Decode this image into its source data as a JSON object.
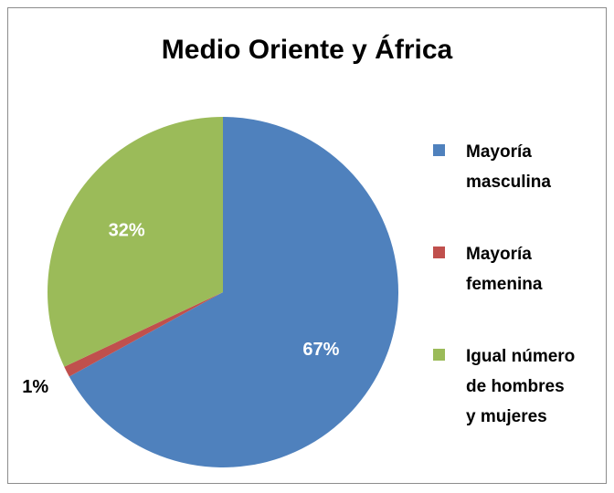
{
  "chart_data": {
    "type": "pie",
    "title": "Medio Oriente y África",
    "categories": [
      "Mayoría masculina",
      "Mayoría femenina",
      "Igual número de hombres y mujeres"
    ],
    "values": [
      67,
      1,
      32
    ],
    "value_labels": [
      "67%",
      "1%",
      "32%"
    ],
    "colors": [
      "#4f81bd",
      "#c0504d",
      "#9bbb59"
    ],
    "legend": "right"
  }
}
